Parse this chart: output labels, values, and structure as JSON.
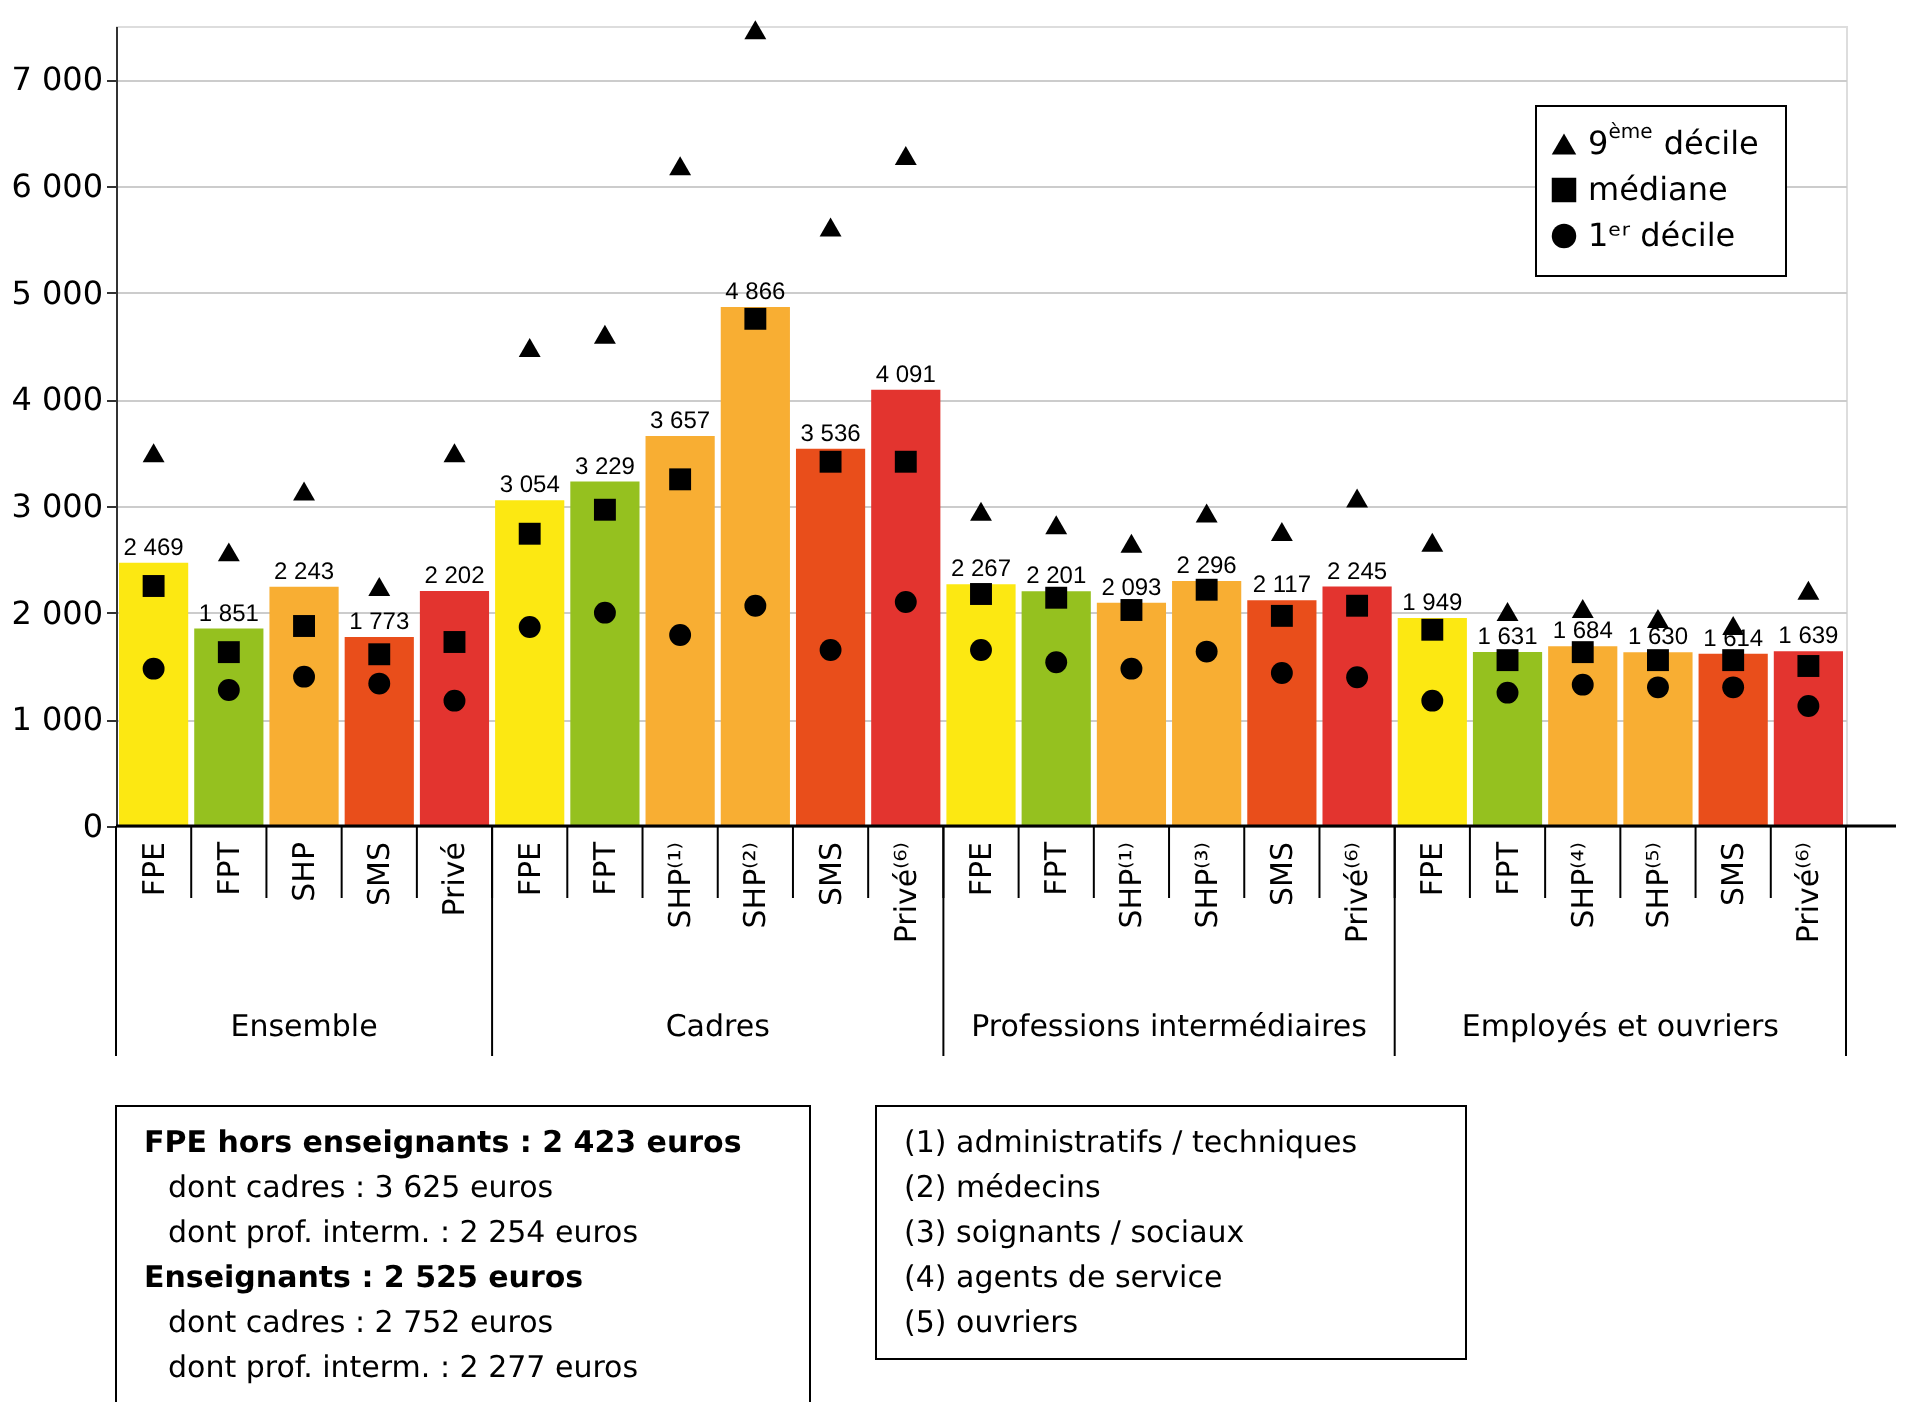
{
  "chart_data": {
    "type": "bar",
    "categories": [
      "FPE",
      "FPT",
      "SHP",
      "SMS",
      "Privé",
      "FPE",
      "FPT",
      "SHP⁽¹⁾",
      "SHP⁽²⁾",
      "SMS",
      "Privé⁽⁶⁾",
      "FPE",
      "FPT",
      "SHP⁽¹⁾",
      "SHP⁽³⁾",
      "SMS",
      "Privé⁽⁶⁾",
      "FPE",
      "FPT",
      "SHP⁽⁴⁾",
      "SHP⁽⁵⁾",
      "SMS",
      "Privé⁽⁶⁾"
    ],
    "series": [
      {
        "colors": [
          "#fce812",
          "#95c11f",
          "#f8ae33",
          "#e94e1b",
          "#e3342f",
          "#fce812",
          "#95c11f",
          "#f8ae33",
          "#f8ae33",
          "#e94e1b",
          "#e3342f",
          "#fce812",
          "#95c11f",
          "#f8ae33",
          "#f8ae33",
          "#e94e1b",
          "#e3342f",
          "#fce812",
          "#95c11f",
          "#f8ae33",
          "#f8ae33",
          "#e94e1b",
          "#e3342f"
        ],
        "values": [
          2469,
          1851,
          2243,
          1773,
          2202,
          3054,
          3229,
          3657,
          4866,
          3536,
          4091,
          2267,
          2201,
          2093,
          2296,
          2117,
          2245,
          1949,
          1631,
          1684,
          1630,
          1614,
          1639
        ],
        "value_labels": [
          "2 469",
          "1 851",
          "2 243",
          "1 773",
          "2 202",
          "3 054",
          "3 229",
          "3 657",
          "4 866",
          "3 536",
          "4 091",
          "2 267",
          "2 201",
          "2 093",
          "2 296",
          "2 117",
          "2 245",
          "1 949",
          "1 631",
          "1 684",
          "1 630",
          "1 614",
          "1 639"
        ]
      },
      {
        "type": "scatter",
        "name": "9$^{ème}$ décile",
        "color": "#000000",
        "marker": "triangle",
        "values": [
          3500,
          2570,
          3140,
          2245,
          3500,
          4485,
          4610,
          6190,
          7465,
          5615,
          6285,
          2950,
          2825,
          2650,
          2935,
          2760,
          3075,
          2660,
          2010,
          2040,
          1945,
          1880,
          2210
        ]
      },
      {
        "type": "scatter",
        "name": "médiane",
        "color": "#000000",
        "marker": "square",
        "values": [
          2250,
          1630,
          1875,
          1610,
          1725,
          2740,
          2965,
          3250,
          4755,
          3415,
          3415,
          2175,
          2140,
          2025,
          2215,
          1970,
          2065,
          1840,
          1555,
          1630,
          1555,
          1555,
          1500
        ]
      },
      {
        "type": "scatter",
        "name": "1ᵉʳ décile",
        "color": "#000000",
        "marker": "circle",
        "values": [
          1475,
          1275,
          1400,
          1335,
          1175,
          1865,
          2000,
          1790,
          2065,
          1650,
          2100,
          1650,
          1535,
          1475,
          1635,
          1435,
          1395,
          1175,
          1250,
          1325,
          1300,
          1300,
          1125
        ]
      }
    ],
    "ylim": [
      0,
      7500
    ],
    "yticks": [
      0,
      {
        "value": 1000,
        "label": "1 000"
      },
      {
        "value": 2000,
        "label": "2 000"
      },
      {
        "value": 3000,
        "label": "3 000"
      },
      {
        "value": 4000,
        "label": "4 000"
      },
      {
        "value": 5000,
        "label": "5 000"
      },
      {
        "value": 6000,
        "label": "6 000"
      },
      {
        "value": 7000,
        "label": "7 000"
      }
    ],
    "grid": "y",
    "legend": "top right",
    "annotations": [
      "Ensemble",
      "Cadres",
      "Professions intermédiaires",
      "Employés et ouvriers",
      "FPE hors enseignants : 2 423 euros\n  dont cadres : 3 625 euros\n  dont prof. interm. :  2 254 euros\nEnseignants : 2 525 euros\n  dont cadres : 2 752 euros\n  dont prof. interm. :  2 277 euros",
      "(1) administratifs / techniques\n(2) médecins\n(3) soignants / sociaux\n(4) agents de service\n(5) ouvriers"
    ]
  }
}
